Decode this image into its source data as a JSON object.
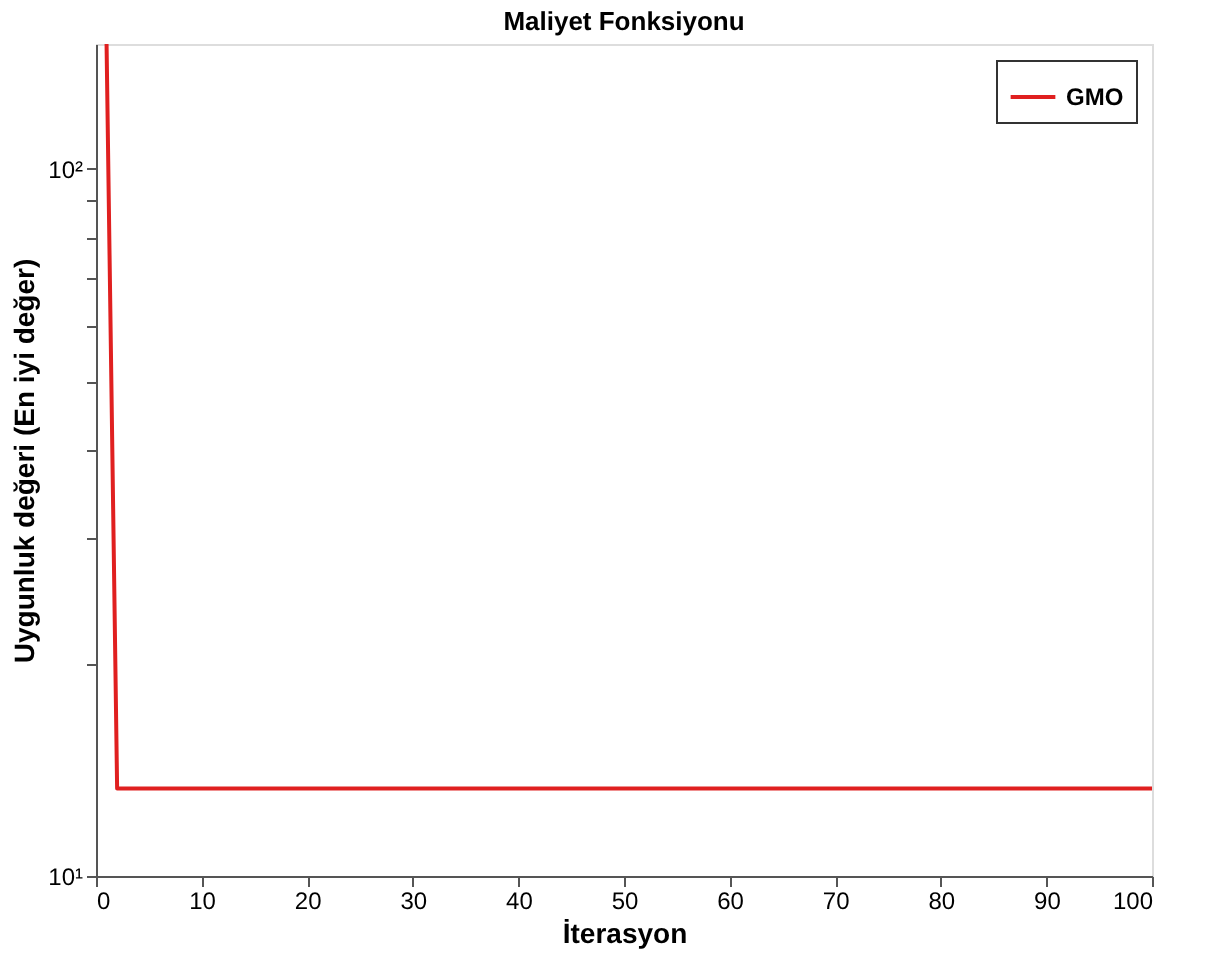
{
  "chart_data": {
    "type": "line",
    "title": "Maliyet Fonksiyonu",
    "xlabel": "İterasyon",
    "ylabel": "Uygunluk değeri (En iyi değer)",
    "x": [
      1,
      2,
      100
    ],
    "series": [
      {
        "name": "GMO",
        "color": "#e02020",
        "values": [
          150,
          13.3,
          13.3
        ]
      }
    ],
    "xlim": [
      0,
      100
    ],
    "xticks": [
      0,
      10,
      20,
      30,
      40,
      50,
      60,
      70,
      80,
      90,
      100
    ],
    "ylim": [
      10,
      150
    ],
    "log": "y",
    "yticks": [
      {
        "value": 10,
        "label": "10¹"
      },
      {
        "value": 20,
        "label": null
      },
      {
        "value": 30,
        "label": null
      },
      {
        "value": 40,
        "label": null
      },
      {
        "value": 50,
        "label": null
      },
      {
        "value": 60,
        "label": null
      },
      {
        "value": 70,
        "label": null
      },
      {
        "value": 80,
        "label": null
      },
      {
        "value": 90,
        "label": null
      },
      {
        "value": 100,
        "label": "10²"
      }
    ],
    "grid": false,
    "legend": "top right",
    "marker": "none",
    "line_style": "solid"
  }
}
